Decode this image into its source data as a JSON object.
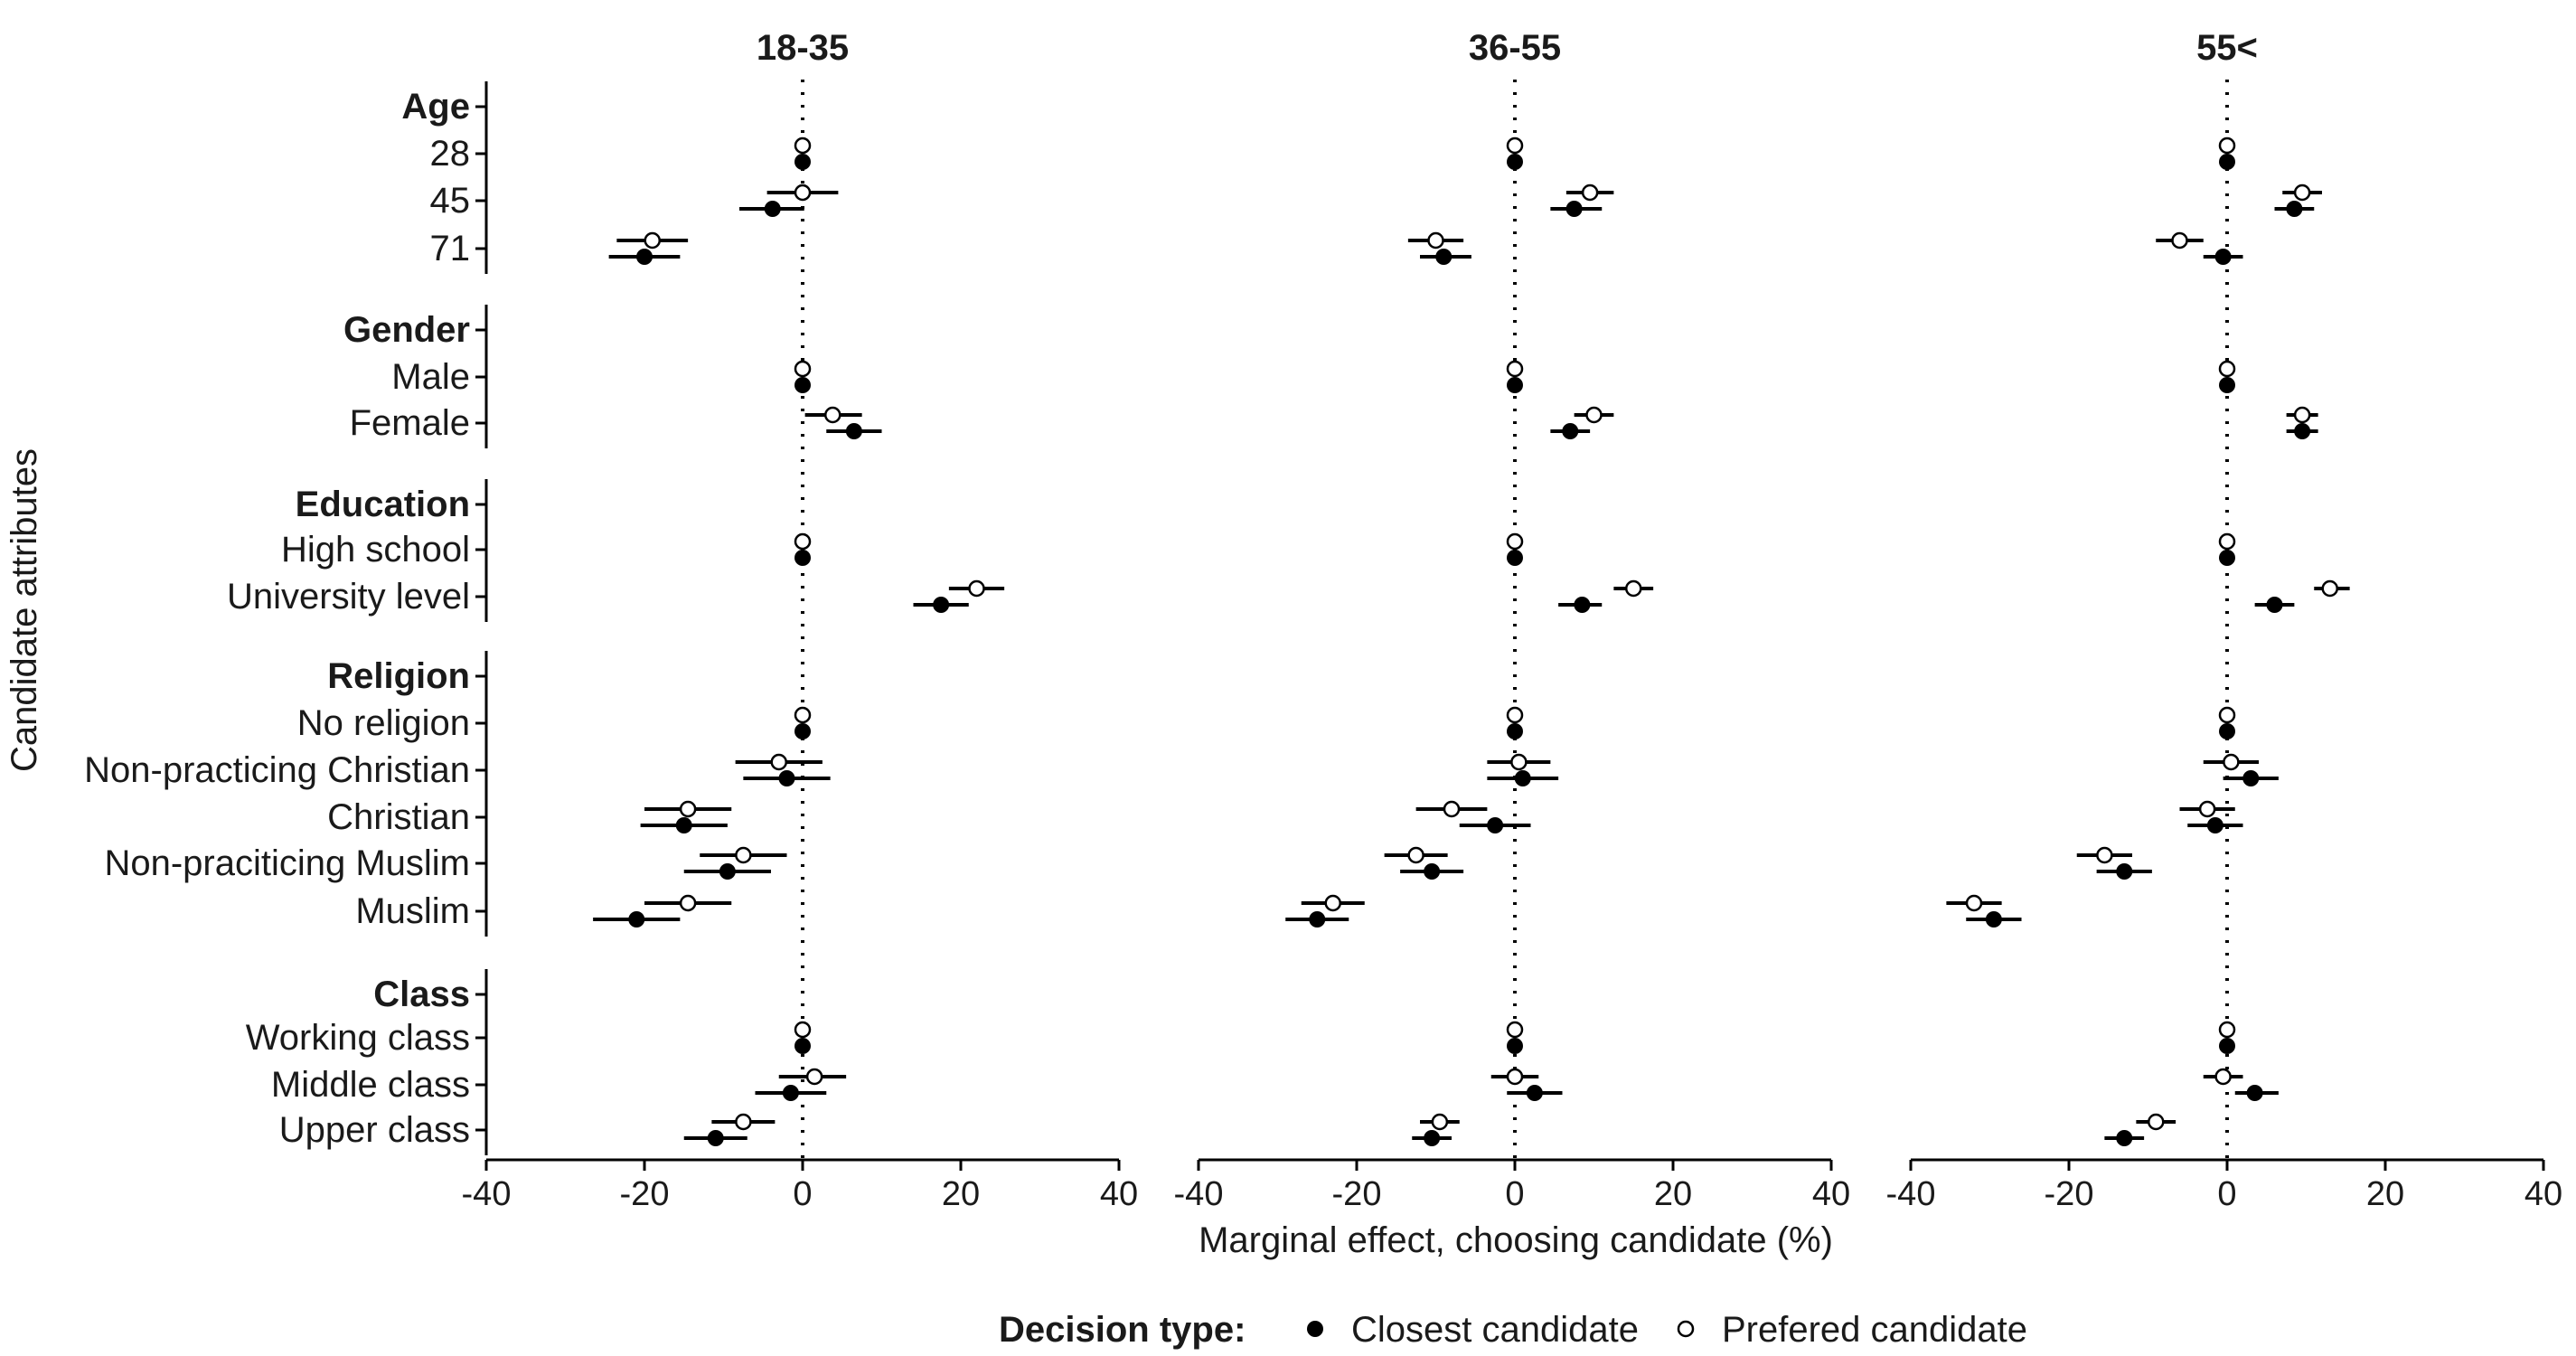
{
  "chart_data": {
    "type": "scatter",
    "subtype": "coefficient-plot-faceted",
    "xlabel": "Marginal effect, choosing candidate (%)",
    "ylabel": "Candidate attributes",
    "xlim": [
      -40,
      40
    ],
    "xticks": [
      "-40",
      "-20",
      "0",
      "20",
      "40"
    ],
    "reference_line_x": 0,
    "grid": false,
    "legend": {
      "title": "Decision type:",
      "placement": "bottom",
      "entries": [
        {
          "label": "Closest candidate",
          "marker": "filled-circle"
        },
        {
          "label": "Prefered candidate",
          "marker": "open-circle"
        }
      ]
    },
    "colors": {
      "ink": "#000000"
    },
    "groups": [
      {
        "label": "Age",
        "levels": [
          "28",
          "45",
          "71"
        ]
      },
      {
        "label": "Gender",
        "levels": [
          "Male",
          "Female"
        ]
      },
      {
        "label": "Education",
        "levels": [
          "High school",
          "University level"
        ]
      },
      {
        "label": "Religion",
        "levels": [
          "No religion",
          "Non-practicing Christian",
          "Christian",
          "Non-praciticing Muslim",
          "Muslim"
        ]
      },
      {
        "label": "Class",
        "levels": [
          "Working class",
          "Middle class",
          "Upper class"
        ]
      }
    ],
    "facets": [
      {
        "title": "18-35",
        "series": [
          {
            "name": "Closest candidate",
            "points": [
              {
                "level": "28",
                "est": 0,
                "lo": 0,
                "hi": 0
              },
              {
                "level": "45",
                "est": -3.8,
                "lo": -8,
                "hi": 0.2
              },
              {
                "level": "71",
                "est": -20,
                "lo": -24.5,
                "hi": -15.5
              },
              {
                "level": "Male",
                "est": 0,
                "lo": 0,
                "hi": 0
              },
              {
                "level": "Female",
                "est": 6.5,
                "lo": 3,
                "hi": 10
              },
              {
                "level": "High school",
                "est": 0,
                "lo": 0,
                "hi": 0
              },
              {
                "level": "University level",
                "est": 17.5,
                "lo": 14,
                "hi": 21
              },
              {
                "level": "No religion",
                "est": 0,
                "lo": 0,
                "hi": 0
              },
              {
                "level": "Non-practicing Christian",
                "est": -2,
                "lo": -7.5,
                "hi": 3.5
              },
              {
                "level": "Christian",
                "est": -15,
                "lo": -20.5,
                "hi": -9.5
              },
              {
                "level": "Non-praciticing Muslim",
                "est": -9.5,
                "lo": -15,
                "hi": -4
              },
              {
                "level": "Muslim",
                "est": -21,
                "lo": -26.5,
                "hi": -15.5
              },
              {
                "level": "Working class",
                "est": 0,
                "lo": 0,
                "hi": 0
              },
              {
                "level": "Middle class",
                "est": -1.5,
                "lo": -6,
                "hi": 3
              },
              {
                "level": "Upper class",
                "est": -11,
                "lo": -15,
                "hi": -7
              }
            ]
          },
          {
            "name": "Prefered candidate",
            "points": [
              {
                "level": "28",
                "est": 0,
                "lo": 0,
                "hi": 0
              },
              {
                "level": "45",
                "est": 0,
                "lo": -4.5,
                "hi": 4.5
              },
              {
                "level": "71",
                "est": -19,
                "lo": -23.5,
                "hi": -14.5
              },
              {
                "level": "Male",
                "est": 0,
                "lo": 0,
                "hi": 0
              },
              {
                "level": "Female",
                "est": 3.8,
                "lo": 0.3,
                "hi": 7.5
              },
              {
                "level": "High school",
                "est": 0,
                "lo": 0,
                "hi": 0
              },
              {
                "level": "University level",
                "est": 22,
                "lo": 18.5,
                "hi": 25.5
              },
              {
                "level": "No religion",
                "est": 0,
                "lo": 0,
                "hi": 0
              },
              {
                "level": "Non-practicing Christian",
                "est": -3,
                "lo": -8.5,
                "hi": 2.5
              },
              {
                "level": "Christian",
                "est": -14.5,
                "lo": -20,
                "hi": -9
              },
              {
                "level": "Non-praciticing Muslim",
                "est": -7.5,
                "lo": -13,
                "hi": -2
              },
              {
                "level": "Muslim",
                "est": -14.5,
                "lo": -20,
                "hi": -9
              },
              {
                "level": "Working class",
                "est": 0,
                "lo": 0,
                "hi": 0
              },
              {
                "level": "Middle class",
                "est": 1.5,
                "lo": -3,
                "hi": 5.5
              },
              {
                "level": "Upper class",
                "est": -7.5,
                "lo": -11.5,
                "hi": -3.5
              }
            ]
          }
        ]
      },
      {
        "title": "36-55",
        "series": [
          {
            "name": "Closest candidate",
            "points": [
              {
                "level": "28",
                "est": 0,
                "lo": 0,
                "hi": 0
              },
              {
                "level": "45",
                "est": 7.5,
                "lo": 4.5,
                "hi": 11
              },
              {
                "level": "71",
                "est": -9,
                "lo": -12,
                "hi": -5.5
              },
              {
                "level": "Male",
                "est": 0,
                "lo": 0,
                "hi": 0
              },
              {
                "level": "Female",
                "est": 7,
                "lo": 4.5,
                "hi": 9.5
              },
              {
                "level": "High school",
                "est": 0,
                "lo": 0,
                "hi": 0
              },
              {
                "level": "University level",
                "est": 8.5,
                "lo": 5.5,
                "hi": 11
              },
              {
                "level": "No religion",
                "est": 0,
                "lo": 0,
                "hi": 0
              },
              {
                "level": "Non-practicing Christian",
                "est": 1,
                "lo": -3.5,
                "hi": 5.5
              },
              {
                "level": "Christian",
                "est": -2.5,
                "lo": -7,
                "hi": 2
              },
              {
                "level": "Non-praciticing Muslim",
                "est": -10.5,
                "lo": -14.5,
                "hi": -6.5
              },
              {
                "level": "Muslim",
                "est": -25,
                "lo": -29,
                "hi": -21
              },
              {
                "level": "Working class",
                "est": 0,
                "lo": 0,
                "hi": 0
              },
              {
                "level": "Middle class",
                "est": 2.5,
                "lo": -1,
                "hi": 6
              },
              {
                "level": "Upper class",
                "est": -10.5,
                "lo": -13,
                "hi": -8
              }
            ]
          },
          {
            "name": "Prefered candidate",
            "points": [
              {
                "level": "28",
                "est": 0,
                "lo": 0,
                "hi": 0
              },
              {
                "level": "45",
                "est": 9.5,
                "lo": 6.5,
                "hi": 12.5
              },
              {
                "level": "71",
                "est": -10,
                "lo": -13.5,
                "hi": -6.5
              },
              {
                "level": "Male",
                "est": 0,
                "lo": 0,
                "hi": 0
              },
              {
                "level": "Female",
                "est": 10,
                "lo": 7.5,
                "hi": 12.5
              },
              {
                "level": "High school",
                "est": 0,
                "lo": 0,
                "hi": 0
              },
              {
                "level": "University level",
                "est": 15,
                "lo": 12.5,
                "hi": 17.5
              },
              {
                "level": "No religion",
                "est": 0,
                "lo": 0,
                "hi": 0
              },
              {
                "level": "Non-practicing Christian",
                "est": 0.5,
                "lo": -3.5,
                "hi": 4.5
              },
              {
                "level": "Christian",
                "est": -8,
                "lo": -12.5,
                "hi": -3.5
              },
              {
                "level": "Non-praciticing Muslim",
                "est": -12.5,
                "lo": -16.5,
                "hi": -8.5
              },
              {
                "level": "Muslim",
                "est": -23,
                "lo": -27,
                "hi": -19
              },
              {
                "level": "Working class",
                "est": 0,
                "lo": 0,
                "hi": 0
              },
              {
                "level": "Middle class",
                "est": 0,
                "lo": -3,
                "hi": 3
              },
              {
                "level": "Upper class",
                "est": -9.5,
                "lo": -12,
                "hi": -7
              }
            ]
          }
        ]
      },
      {
        "title": "55<",
        "series": [
          {
            "name": "Closest candidate",
            "points": [
              {
                "level": "28",
                "est": 0,
                "lo": 0,
                "hi": 0
              },
              {
                "level": "45",
                "est": 8.5,
                "lo": 6,
                "hi": 11
              },
              {
                "level": "71",
                "est": -0.5,
                "lo": -3,
                "hi": 2
              },
              {
                "level": "Male",
                "est": 0,
                "lo": 0,
                "hi": 0
              },
              {
                "level": "Female",
                "est": 9.5,
                "lo": 7.5,
                "hi": 11.5
              },
              {
                "level": "High school",
                "est": 0,
                "lo": 0,
                "hi": 0
              },
              {
                "level": "University level",
                "est": 6,
                "lo": 3.5,
                "hi": 8.5
              },
              {
                "level": "No religion",
                "est": 0,
                "lo": 0,
                "hi": 0
              },
              {
                "level": "Non-practicing Christian",
                "est": 3,
                "lo": -0.5,
                "hi": 6.5
              },
              {
                "level": "Christian",
                "est": -1.5,
                "lo": -5,
                "hi": 2
              },
              {
                "level": "Non-praciticing Muslim",
                "est": -13,
                "lo": -16.5,
                "hi": -9.5
              },
              {
                "level": "Muslim",
                "est": -29.5,
                "lo": -33,
                "hi": -26
              },
              {
                "level": "Working class",
                "est": 0,
                "lo": 0,
                "hi": 0
              },
              {
                "level": "Middle class",
                "est": 3.5,
                "lo": 1,
                "hi": 6.5
              },
              {
                "level": "Upper class",
                "est": -13,
                "lo": -15.5,
                "hi": -10.5
              }
            ]
          },
          {
            "name": "Prefered candidate",
            "points": [
              {
                "level": "28",
                "est": 0,
                "lo": 0,
                "hi": 0
              },
              {
                "level": "45",
                "est": 9.5,
                "lo": 7,
                "hi": 12
              },
              {
                "level": "71",
                "est": -6,
                "lo": -9,
                "hi": -3
              },
              {
                "level": "Male",
                "est": 0,
                "lo": 0,
                "hi": 0
              },
              {
                "level": "Female",
                "est": 9.5,
                "lo": 7.5,
                "hi": 11.5
              },
              {
                "level": "High school",
                "est": 0,
                "lo": 0,
                "hi": 0
              },
              {
                "level": "University level",
                "est": 13,
                "lo": 11,
                "hi": 15.5
              },
              {
                "level": "No religion",
                "est": 0,
                "lo": 0,
                "hi": 0
              },
              {
                "level": "Non-practicing Christian",
                "est": 0.5,
                "lo": -3,
                "hi": 4
              },
              {
                "level": "Christian",
                "est": -2.5,
                "lo": -6,
                "hi": 1
              },
              {
                "level": "Non-praciticing Muslim",
                "est": -15.5,
                "lo": -19,
                "hi": -12
              },
              {
                "level": "Muslim",
                "est": -32,
                "lo": -35.5,
                "hi": -28.5
              },
              {
                "level": "Working class",
                "est": 0,
                "lo": 0,
                "hi": 0
              },
              {
                "level": "Middle class",
                "est": -0.5,
                "lo": -3,
                "hi": 2
              },
              {
                "level": "Upper class",
                "est": -9,
                "lo": -11.5,
                "hi": -6.5
              }
            ]
          }
        ]
      }
    ]
  }
}
